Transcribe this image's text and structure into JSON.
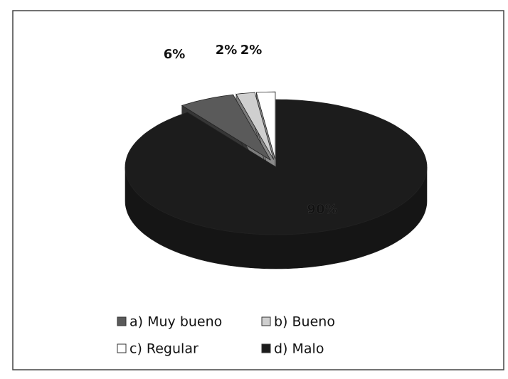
{
  "chart_data": {
    "type": "pie",
    "categories": [
      "a) Muy bueno",
      "b) Bueno",
      "c) Regular",
      "d) Malo"
    ],
    "values": [
      6,
      2,
      2,
      90
    ],
    "value_labels": [
      "6%",
      "2%",
      "2%",
      "90%"
    ],
    "colors": [
      "#5a5a5a",
      "#cfcfcf",
      "#ffffff",
      "#1c1c1c"
    ],
    "legend": "bottom"
  }
}
